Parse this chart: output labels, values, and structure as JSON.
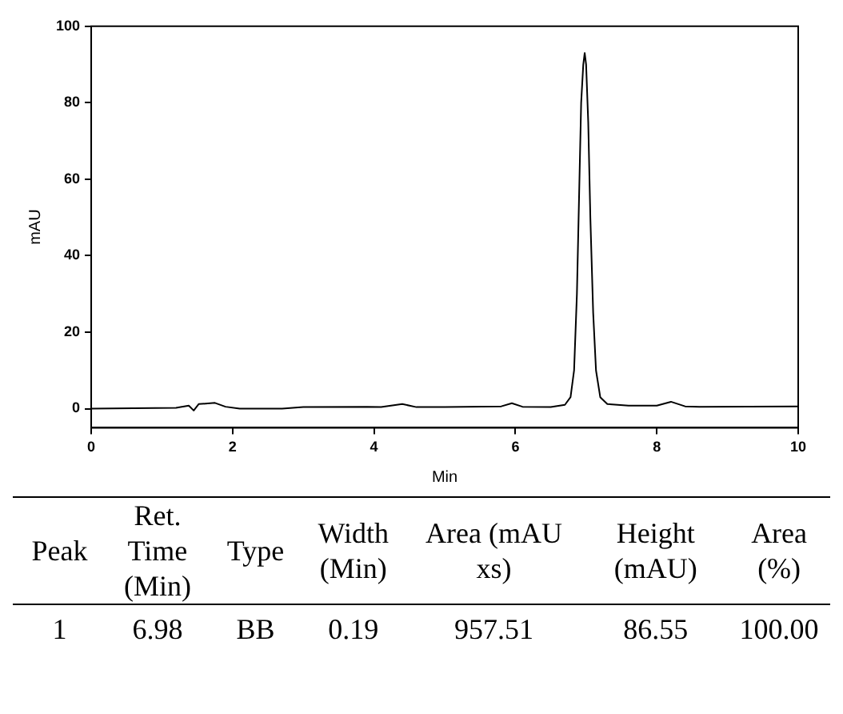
{
  "chart_data": {
    "type": "line",
    "xlabel": "Min",
    "ylabel": "mAU",
    "color": "#000000",
    "marker": "none",
    "grid": false,
    "x": [
      0,
      1.2,
      1.38,
      1.45,
      1.52,
      1.75,
      1.9,
      2.1,
      2.7,
      3,
      3.9,
      4.1,
      4.4,
      4.6,
      5,
      5.8,
      5.95,
      6.1,
      6.5,
      6.7,
      6.78,
      6.83,
      6.87,
      6.9,
      6.93,
      6.96,
      6.98,
      7.0,
      7.03,
      7.06,
      7.1,
      7.14,
      7.2,
      7.3,
      7.6,
      8.0,
      8.2,
      8.4,
      8.6,
      10
    ],
    "values": [
      0,
      0.2,
      0.8,
      -0.5,
      1.2,
      1.5,
      0.5,
      0,
      0,
      0.4,
      0.5,
      0.4,
      1.2,
      0.4,
      0.4,
      0.6,
      1.4,
      0.5,
      0.4,
      1,
      3,
      10,
      30,
      55,
      80,
      90,
      93,
      90,
      75,
      50,
      25,
      10,
      3,
      1.2,
      0.8,
      0.8,
      1.8,
      0.6,
      0.5,
      0.6
    ],
    "xlim": [
      0,
      10
    ],
    "ylim": [
      -5,
      100
    ],
    "xticks": [
      0,
      2,
      4,
      6,
      8,
      10
    ],
    "yticks": [
      0,
      20,
      40,
      60,
      80,
      100
    ],
    "annotations": [
      "Peak",
      "Ret. Time (Min)",
      "Type",
      "Width (Min)",
      "Area (mAU xs)",
      "Height (mAU)",
      "Area (%)",
      "1",
      "6.98",
      "BB",
      "0.19",
      "957.51",
      "86.55",
      "100.00"
    ]
  }
}
